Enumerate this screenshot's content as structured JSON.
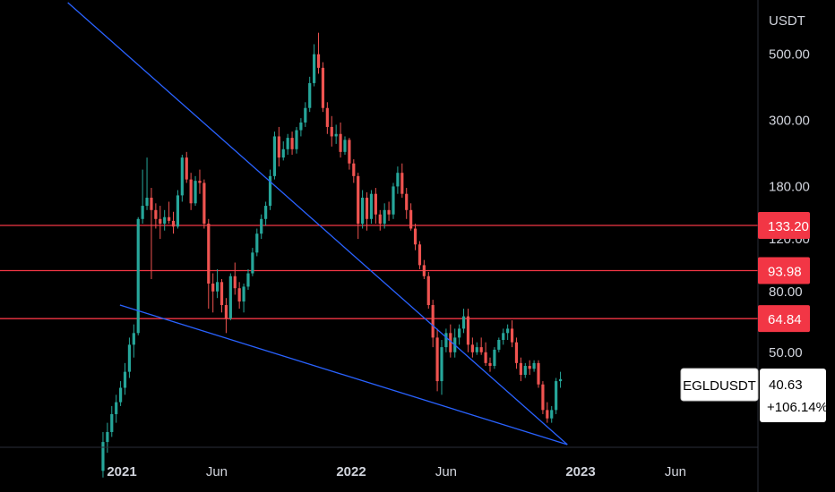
{
  "chart_data": {
    "type": "candlestick",
    "symbol": "EGLDUSDT",
    "last_price": "40.63",
    "change": "+106.14%",
    "currency": "USDT",
    "scale": "log",
    "ylim": [
      24,
      760
    ],
    "x_ticks": [
      "2021",
      "Jun",
      "2022",
      "Jun",
      "2023",
      "Jun"
    ],
    "y_ticks": [
      "500.00",
      "300.00",
      "180.00",
      "120.00",
      "80.00",
      "50.00"
    ],
    "y_tick_values": [
      500,
      300,
      180,
      120,
      80,
      50
    ],
    "horizontal_levels": [
      {
        "label": "133.20",
        "value": 133.2,
        "color": "#f23645"
      },
      {
        "label": "93.98",
        "value": 93.98,
        "color": "#f23645"
      },
      {
        "label": "64.84",
        "value": 64.84,
        "color": "#f23645"
      }
    ],
    "trendlines": [
      {
        "name": "upper",
        "color": "#2962ff",
        "points": [
          [
            "2020-10-07",
            745
          ],
          [
            "2022-12-11",
            24.5
          ]
        ]
      },
      {
        "name": "lower",
        "color": "#2962ff",
        "points": [
          [
            "2020-12-29",
            72
          ],
          [
            "2022-12-11",
            24.5
          ]
        ]
      }
    ],
    "colors": {
      "up": "#26a69a",
      "down": "#ef5350",
      "background": "#000000",
      "axis_text": "#d1d4dc"
    },
    "candles": [
      [
        "2020-12-02",
        20,
        27,
        19,
        25
      ],
      [
        "2020-12-09",
        25,
        29,
        23,
        27
      ],
      [
        "2020-12-16",
        27,
        33,
        26,
        31
      ],
      [
        "2020-12-23",
        31,
        36,
        29,
        34
      ],
      [
        "2020-12-30",
        34,
        40,
        33,
        38
      ],
      [
        "2021-01-06",
        38,
        46,
        36,
        43
      ],
      [
        "2021-01-13",
        43,
        56,
        41,
        53
      ],
      [
        "2021-01-20",
        53,
        62,
        48,
        58
      ],
      [
        "2021-01-27",
        58,
        142,
        57,
        140
      ],
      [
        "2021-02-03",
        140,
        205,
        135,
        155
      ],
      [
        "2021-02-10",
        155,
        225,
        150,
        165
      ],
      [
        "2021-02-17",
        165,
        178,
        88,
        150
      ],
      [
        "2021-02-24",
        150,
        158,
        130,
        140
      ],
      [
        "2021-03-03",
        140,
        155,
        120,
        135
      ],
      [
        "2021-03-10",
        135,
        150,
        128,
        142
      ],
      [
        "2021-03-17",
        142,
        160,
        135,
        138
      ],
      [
        "2021-03-24",
        138,
        148,
        125,
        132
      ],
      [
        "2021-03-31",
        132,
        175,
        130,
        168
      ],
      [
        "2021-04-07",
        168,
        230,
        160,
        225
      ],
      [
        "2021-04-14",
        225,
        235,
        185,
        190
      ],
      [
        "2021-04-21",
        190,
        200,
        150,
        158
      ],
      [
        "2021-04-28",
        158,
        195,
        155,
        188
      ],
      [
        "2021-05-05",
        188,
        205,
        170,
        185
      ],
      [
        "2021-05-12",
        185,
        190,
        130,
        135
      ],
      [
        "2021-05-19",
        135,
        140,
        70,
        85
      ],
      [
        "2021-05-26",
        85,
        92,
        68,
        80
      ],
      [
        "2021-06-02",
        80,
        95,
        76,
        86
      ],
      [
        "2021-06-09",
        86,
        88,
        68,
        72
      ],
      [
        "2021-06-16",
        72,
        76,
        58,
        65
      ],
      [
        "2021-06-23",
        65,
        92,
        64,
        90
      ],
      [
        "2021-06-30",
        90,
        100,
        78,
        82
      ],
      [
        "2021-07-07",
        82,
        86,
        70,
        74
      ],
      [
        "2021-07-14",
        74,
        85,
        68,
        83
      ],
      [
        "2021-07-21",
        83,
        95,
        81,
        92
      ],
      [
        "2021-07-28",
        92,
        112,
        90,
        108
      ],
      [
        "2021-08-04",
        108,
        130,
        105,
        125
      ],
      [
        "2021-08-11",
        125,
        145,
        120,
        140
      ],
      [
        "2021-08-18",
        140,
        160,
        133,
        155
      ],
      [
        "2021-08-25",
        155,
        205,
        150,
        195
      ],
      [
        "2021-09-01",
        195,
        275,
        190,
        265
      ],
      [
        "2021-09-08",
        265,
        285,
        210,
        225
      ],
      [
        "2021-09-15",
        225,
        255,
        220,
        240
      ],
      [
        "2021-09-22",
        240,
        270,
        230,
        262
      ],
      [
        "2021-09-29",
        262,
        275,
        230,
        240
      ],
      [
        "2021-10-06",
        240,
        285,
        232,
        278
      ],
      [
        "2021-10-13",
        278,
        305,
        265,
        295
      ],
      [
        "2021-10-20",
        295,
        345,
        285,
        330
      ],
      [
        "2021-10-27",
        330,
        420,
        320,
        400
      ],
      [
        "2021-11-03",
        400,
        540,
        390,
        500
      ],
      [
        "2021-11-10",
        500,
        590,
        430,
        450
      ],
      [
        "2021-11-17",
        450,
        470,
        320,
        330
      ],
      [
        "2021-11-24",
        330,
        345,
        270,
        285
      ],
      [
        "2021-12-01",
        285,
        310,
        245,
        265
      ],
      [
        "2021-12-08",
        265,
        290,
        250,
        270
      ],
      [
        "2021-12-15",
        270,
        295,
        225,
        235
      ],
      [
        "2021-12-22",
        235,
        265,
        230,
        258
      ],
      [
        "2021-12-29",
        258,
        262,
        205,
        215
      ],
      [
        "2022-01-05",
        215,
        222,
        185,
        195
      ],
      [
        "2022-01-12",
        195,
        200,
        120,
        135
      ],
      [
        "2022-01-19",
        135,
        175,
        130,
        165
      ],
      [
        "2022-01-26",
        165,
        172,
        128,
        140
      ],
      [
        "2022-02-02",
        140,
        175,
        135,
        170
      ],
      [
        "2022-02-09",
        170,
        178,
        135,
        145
      ],
      [
        "2022-02-16",
        145,
        150,
        128,
        135
      ],
      [
        "2022-02-23",
        135,
        158,
        130,
        150
      ],
      [
        "2022-03-02",
        150,
        160,
        138,
        145
      ],
      [
        "2022-03-09",
        145,
        185,
        140,
        180
      ],
      [
        "2022-03-16",
        180,
        210,
        170,
        200
      ],
      [
        "2022-03-23",
        200,
        215,
        165,
        170
      ],
      [
        "2022-03-30",
        170,
        178,
        140,
        150
      ],
      [
        "2022-04-06",
        150,
        158,
        128,
        130
      ],
      [
        "2022-04-13",
        130,
        135,
        110,
        115
      ],
      [
        "2022-04-20",
        115,
        118,
        95,
        98
      ],
      [
        "2022-04-27",
        98,
        102,
        88,
        90
      ],
      [
        "2022-05-04",
        90,
        93,
        70,
        72
      ],
      [
        "2022-05-11",
        72,
        75,
        52,
        56
      ],
      [
        "2022-05-18",
        56,
        60,
        37,
        40
      ],
      [
        "2022-05-25",
        40,
        55,
        36,
        52
      ],
      [
        "2022-06-01",
        52,
        60,
        50,
        58
      ],
      [
        "2022-06-08",
        58,
        62,
        48,
        50
      ],
      [
        "2022-06-15",
        50,
        60,
        48,
        56
      ],
      [
        "2022-06-22",
        56,
        62,
        53,
        60
      ],
      [
        "2022-06-29",
        60,
        70,
        58,
        66
      ],
      [
        "2022-07-06",
        66,
        70,
        50,
        53
      ],
      [
        "2022-07-13",
        53,
        56,
        48,
        50
      ],
      [
        "2022-07-20",
        50,
        54,
        49,
        52
      ],
      [
        "2022-07-27",
        52,
        56,
        49,
        50
      ],
      [
        "2022-08-03",
        50,
        54,
        45,
        46
      ],
      [
        "2022-08-10",
        46,
        48,
        43,
        45
      ],
      [
        "2022-08-17",
        45,
        52,
        44,
        51
      ],
      [
        "2022-08-24",
        51,
        56,
        50,
        55
      ],
      [
        "2022-08-31",
        55,
        60,
        53,
        58
      ],
      [
        "2022-09-07",
        58,
        62,
        55,
        60
      ],
      [
        "2022-09-14",
        60,
        64,
        52,
        54
      ],
      [
        "2022-09-21",
        54,
        56,
        44,
        46
      ],
      [
        "2022-09-28",
        46,
        48,
        40,
        42
      ],
      [
        "2022-10-05",
        42,
        46,
        41,
        45
      ],
      [
        "2022-10-12",
        45,
        47,
        42,
        44
      ],
      [
        "2022-10-19",
        44,
        47,
        43,
        46
      ],
      [
        "2022-10-26",
        46,
        47,
        38,
        39
      ],
      [
        "2022-11-02",
        39,
        40,
        31,
        32
      ],
      [
        "2022-11-09",
        32,
        34,
        29,
        30
      ],
      [
        "2022-11-16",
        30,
        33,
        29,
        32
      ],
      [
        "2022-11-23",
        32,
        41,
        31,
        40
      ],
      [
        "2022-11-30",
        40,
        43,
        38,
        40.63
      ]
    ]
  }
}
